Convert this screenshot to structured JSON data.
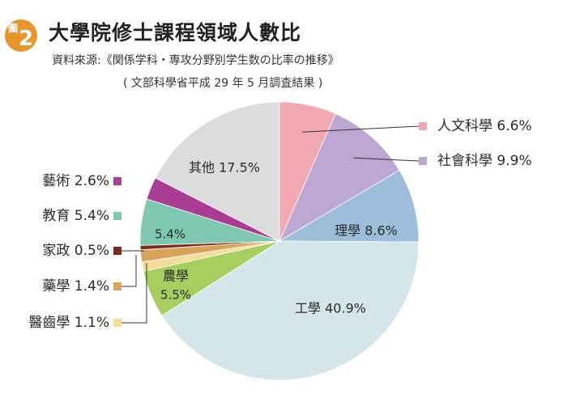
{
  "header": {
    "badge_label": "圖",
    "badge_number": "2",
    "title": "大學院修士課程領域人數比",
    "source_line1": "資料來源:《関係学科・専攻分野別学生数の比率の推移》",
    "source_line2": "( 文部科學省平成 29 年 5 月調査結果 )"
  },
  "chart_data": {
    "type": "pie",
    "title": "大學院修士課程領域人數比",
    "unit": "%",
    "start_angle_deg": 0,
    "direction": "clockwise",
    "slices": [
      {
        "name": "人文科學",
        "value": 6.6,
        "color": "#f2a9b1",
        "label_text": "人文科學 6.6%",
        "callout": "right"
      },
      {
        "name": "社會科學",
        "value": 9.9,
        "color": "#bca8d3",
        "label_text": "社會科學 9.9%",
        "callout": "right"
      },
      {
        "name": "理學",
        "value": 8.6,
        "color": "#9dbedb",
        "label_text": "理學 8.6%",
        "callout": "inside"
      },
      {
        "name": "工學",
        "value": 40.9,
        "color": "#d4e6ea",
        "label_text": "工學 40.9%",
        "callout": "inside"
      },
      {
        "name": "農學",
        "value": 5.5,
        "color": "#a7cf5f",
        "label_text": "農學 5.5%",
        "callout": "inside"
      },
      {
        "name": "醫齒學",
        "value": 1.1,
        "color": "#f3dd9a",
        "label_text": "醫齒學 1.1%",
        "callout": "left"
      },
      {
        "name": "藥學",
        "value": 1.4,
        "color": "#d9a35a",
        "label_text": "藥學 1.4%",
        "callout": "left"
      },
      {
        "name": "家政",
        "value": 0.5,
        "color": "#7c2a1e",
        "label_text": "家政 0.5%",
        "callout": "left"
      },
      {
        "name": "教育",
        "value": 5.4,
        "color": "#7ec8b1",
        "label_text": "教育 5.4%",
        "callout": "left",
        "inside_value": "5.4%"
      },
      {
        "name": "藝術",
        "value": 2.6,
        "color": "#aa3d93",
        "label_text": "藝術 2.6%",
        "callout": "left"
      },
      {
        "name": "其他",
        "value": 17.5,
        "color": "#dcdcdc",
        "label_text": "其他 17.5%",
        "callout": "inside"
      }
    ]
  }
}
